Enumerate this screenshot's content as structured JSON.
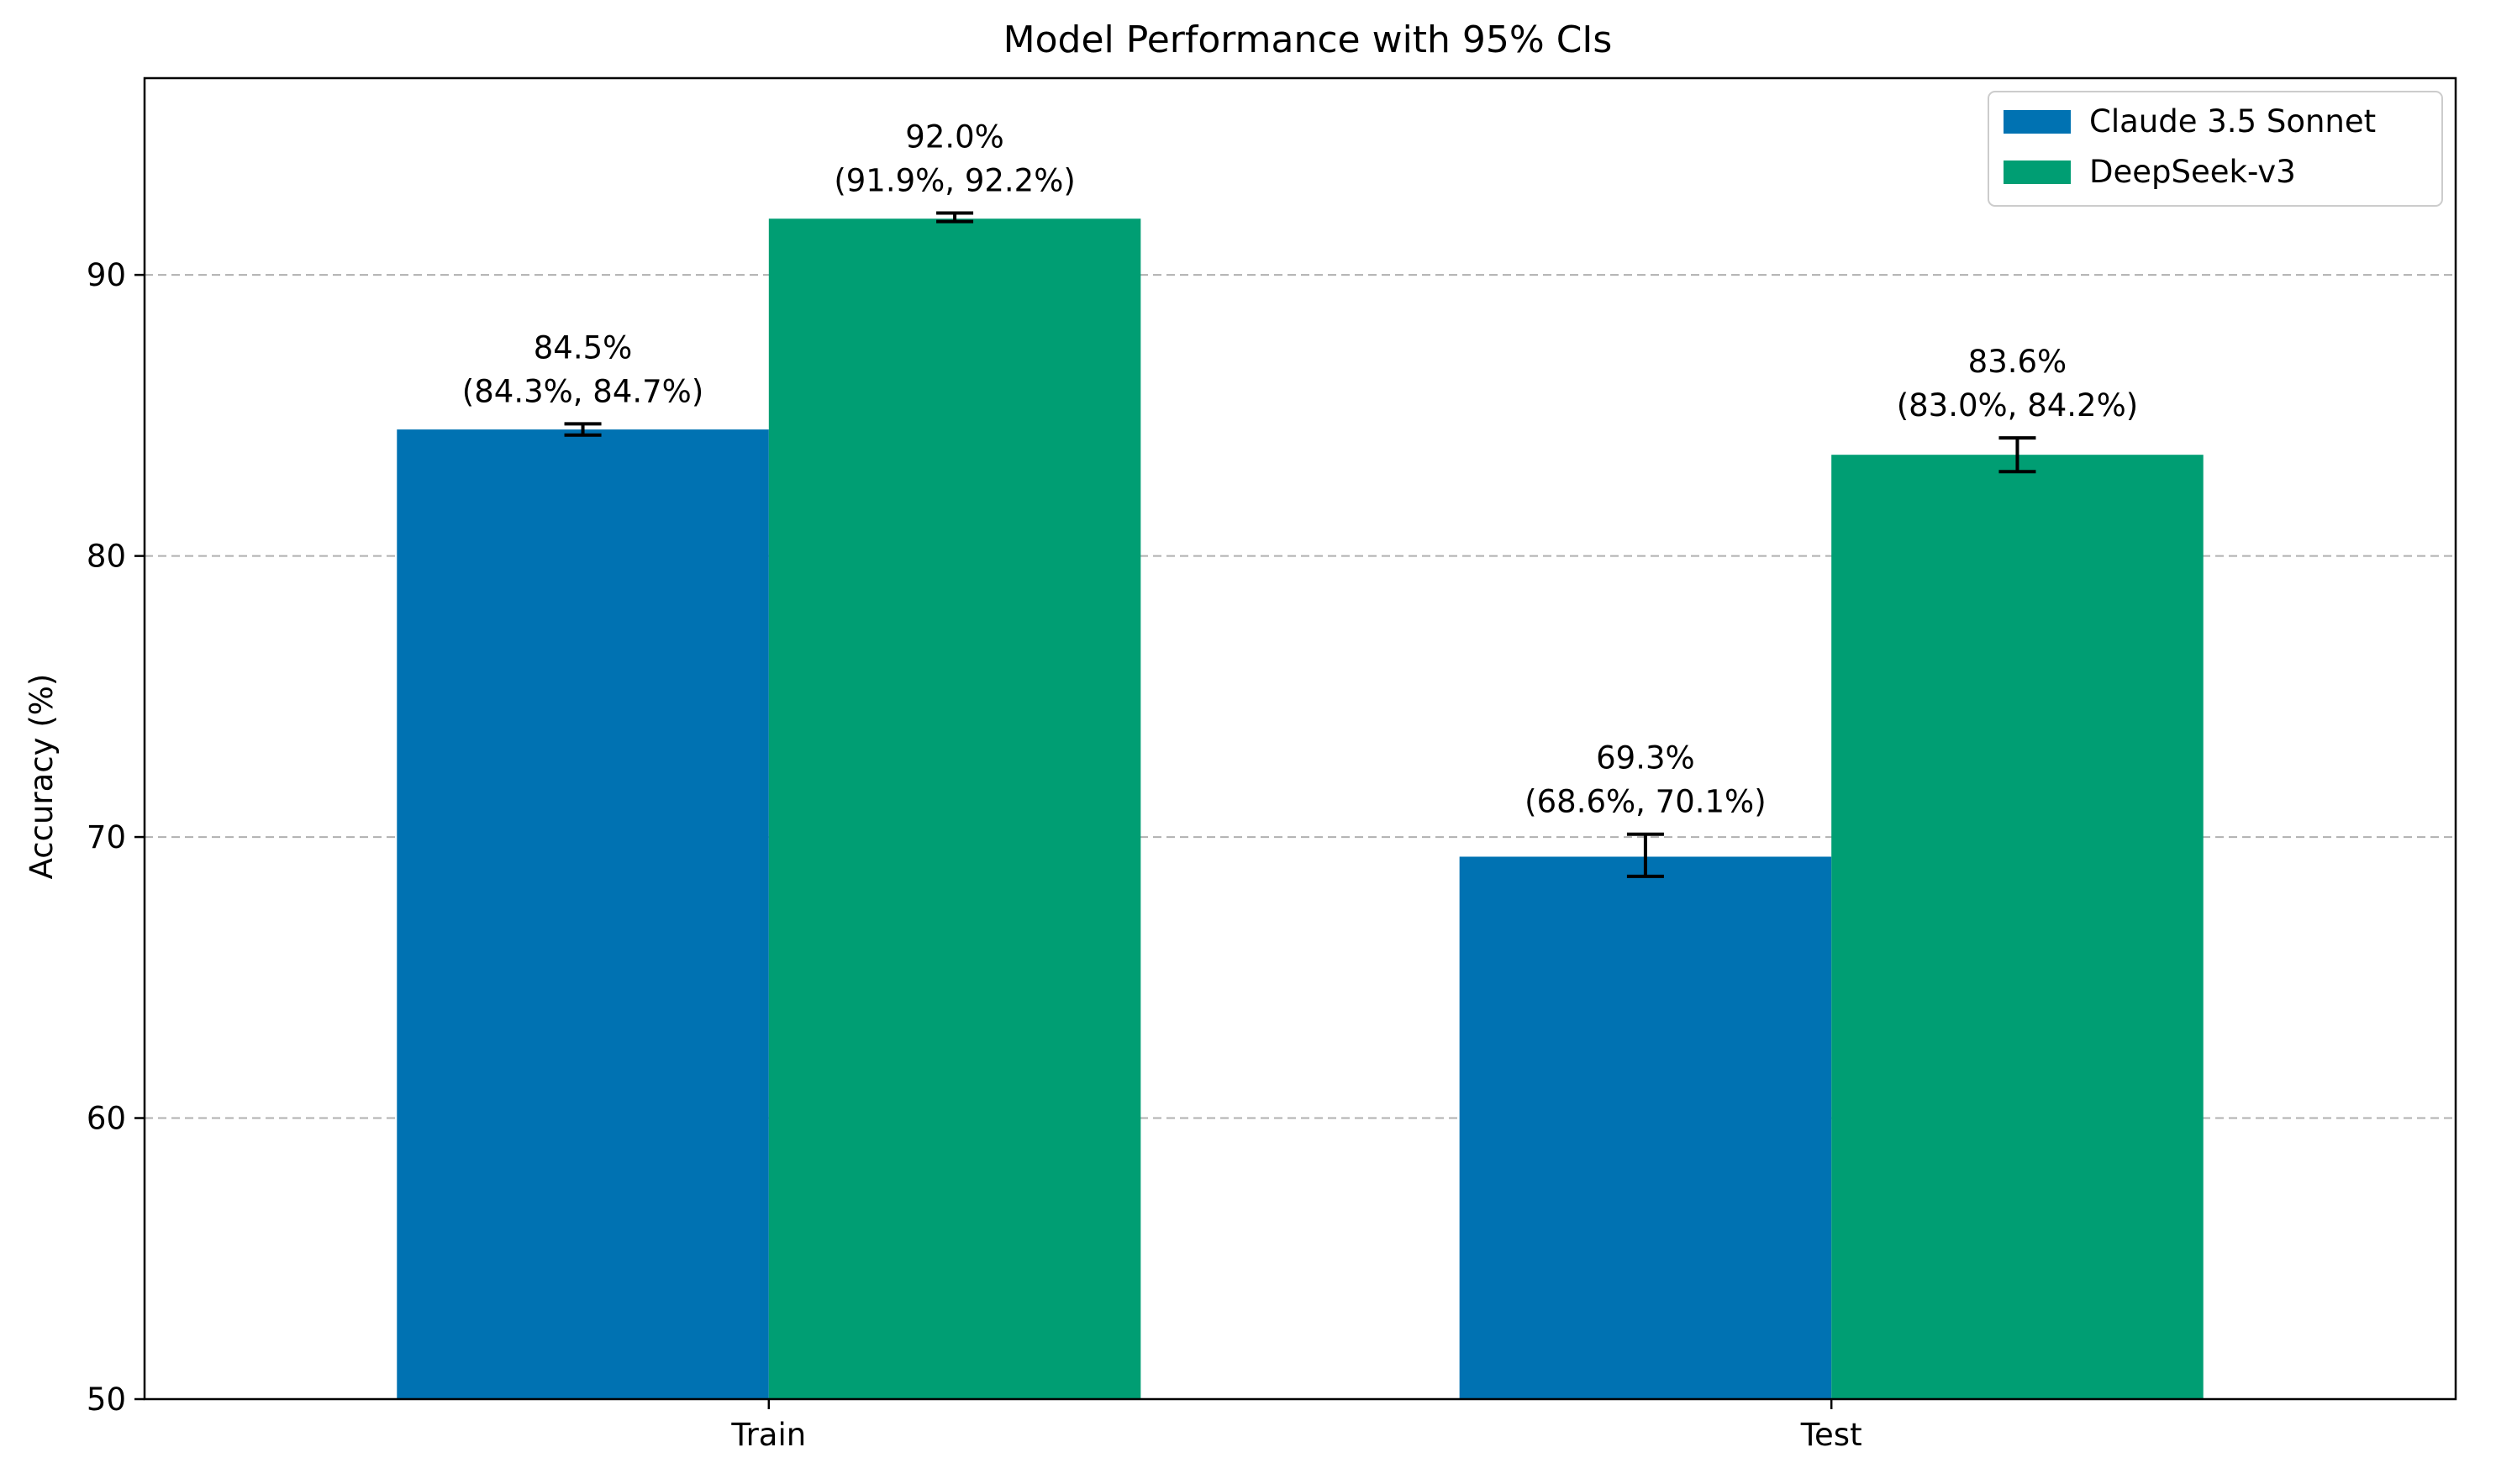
{
  "chart_data": {
    "type": "bar",
    "title": "Model Performance with 95% CIs",
    "xlabel": "",
    "ylabel": "Accuracy (%)",
    "ylim": [
      50,
      97
    ],
    "yticks": [
      50,
      60,
      70,
      80,
      90
    ],
    "grid": {
      "y": true,
      "style": "dashed"
    },
    "legend_position": "top-right",
    "categories": [
      "Train",
      "Test"
    ],
    "series": [
      {
        "name": "Claude 3.5 Sonnet",
        "color": "#0072B2",
        "values": [
          84.5,
          69.3
        ],
        "ci_low": [
          84.3,
          68.6
        ],
        "ci_high": [
          84.7,
          70.1
        ],
        "labels": [
          "84.5%\n(84.3%, 84.7%)",
          "69.3%\n(68.6%, 70.1%)"
        ]
      },
      {
        "name": "DeepSeek-v3",
        "color": "#009E73",
        "values": [
          92.0,
          83.6
        ],
        "ci_low": [
          91.9,
          83.0
        ],
        "ci_high": [
          92.2,
          84.2
        ],
        "labels": [
          "92.0%\n(91.9%, 92.2%)",
          "83.6%\n(83.0%, 84.2%)"
        ]
      }
    ]
  }
}
